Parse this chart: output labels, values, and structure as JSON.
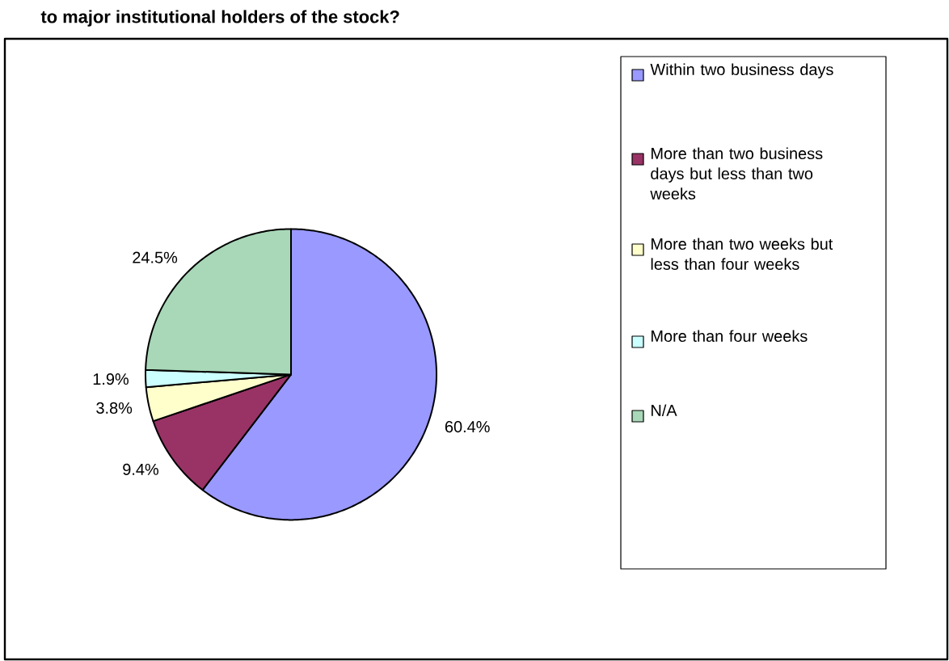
{
  "chart_data": {
    "type": "pie",
    "title": "to major institutional holders of the stock?",
    "categories": [
      "Within two business days",
      "More than two business days but less than two weeks",
      "More than two weeks but less than four weeks",
      "More than four weeks",
      "N/A"
    ],
    "values": [
      60.4,
      9.4,
      3.8,
      1.9,
      24.5
    ],
    "value_labels": [
      "60.4%",
      "9.4%",
      "3.8%",
      "1.9%",
      "24.5%"
    ],
    "colors": [
      "#9999ff",
      "#993366",
      "#ffffcc",
      "#ccffff",
      "#a8d8b8"
    ],
    "legend": "right"
  }
}
